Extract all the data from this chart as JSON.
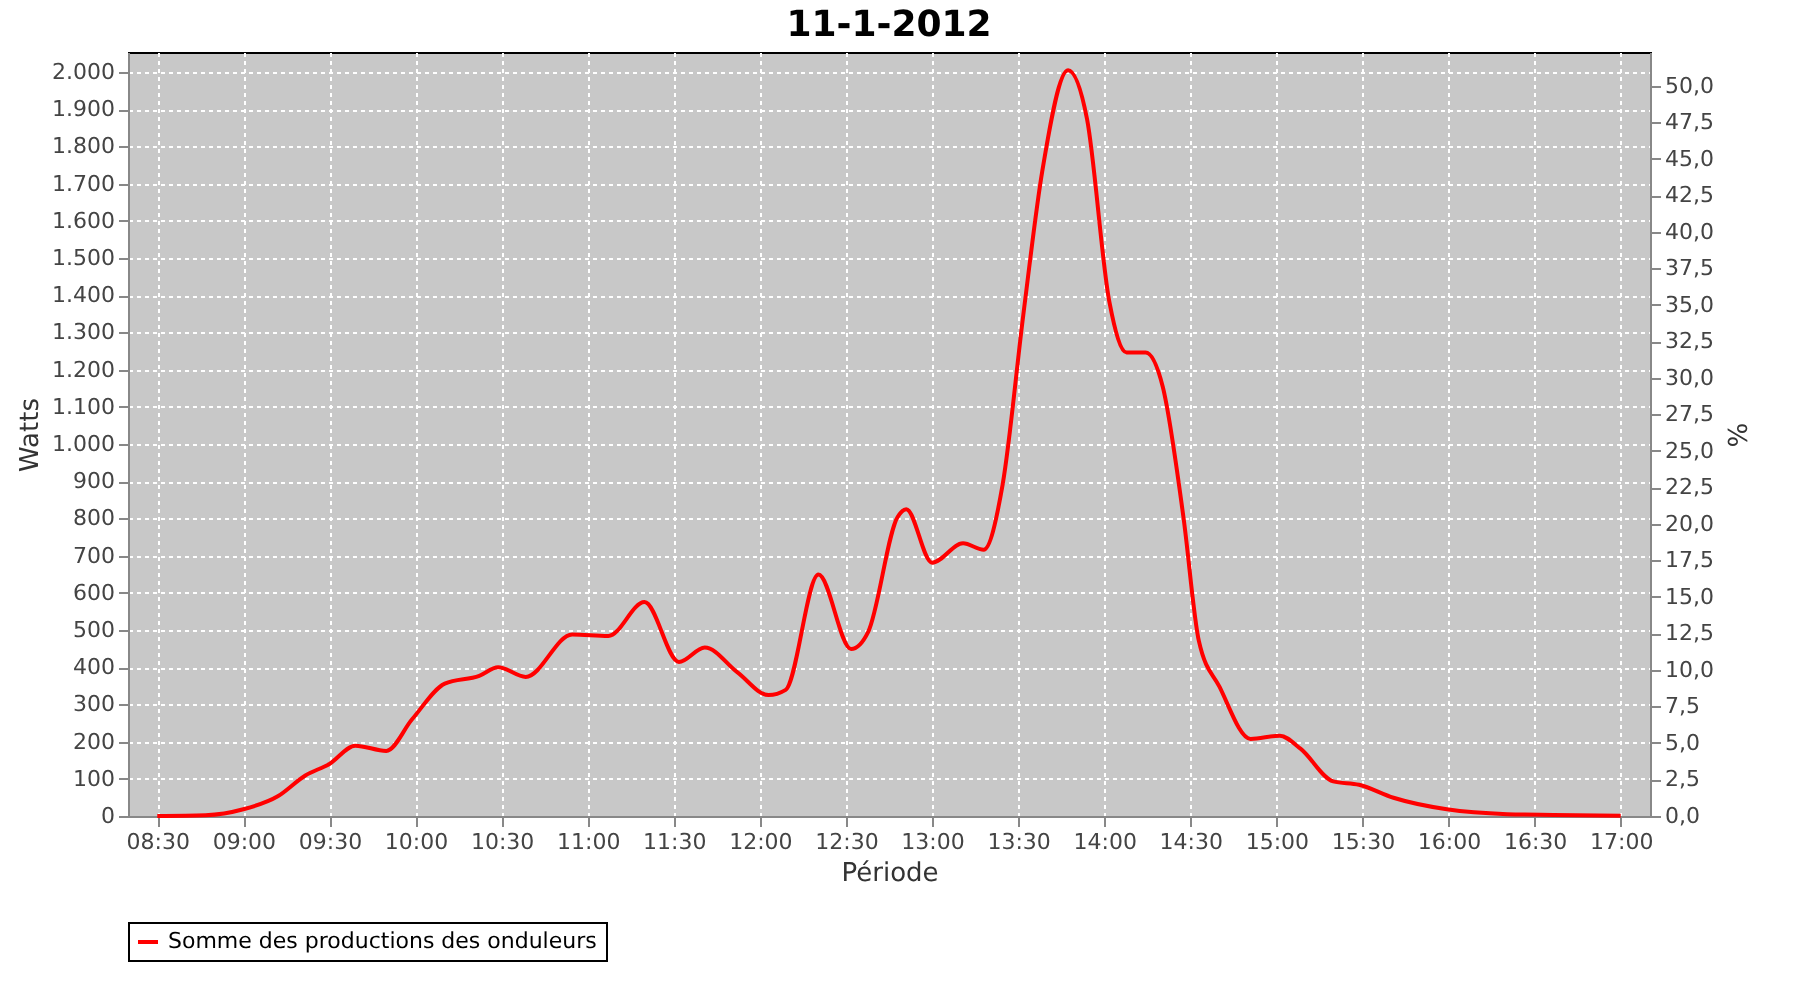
{
  "chart_data": {
    "type": "line",
    "title": "11-1-2012",
    "xlabel": "Période",
    "ylabel": "Watts",
    "y2label": "%",
    "series": [
      {
        "name": "Somme des productions des onduleurs",
        "color": "#ff0000",
        "x": [
          8.5,
          8.78,
          9.0,
          9.2,
          9.36,
          9.5,
          9.65,
          9.83,
          9.98,
          10.17,
          10.37,
          10.48,
          10.64,
          10.91,
          11.12,
          11.33,
          11.53,
          11.68,
          11.87,
          12.05,
          12.15,
          12.34,
          12.53,
          12.63,
          12.8,
          12.85,
          13.0,
          13.18,
          13.3,
          13.41,
          13.53,
          13.64,
          13.79,
          13.9,
          14.03,
          14.13,
          14.24,
          14.34,
          14.46,
          14.55,
          14.67,
          14.85,
          15.02,
          15.14,
          15.33,
          15.48,
          15.68,
          15.99,
          16.34,
          16.61,
          17.0
        ],
        "values": [
          0,
          2,
          18,
          53,
          109,
          140,
          189,
          175,
          260,
          356,
          377,
          400,
          374,
          488,
          484,
          575,
          414,
          453,
          386,
          325,
          339,
          649,
          449,
          496,
          804,
          825,
          681,
          733,
          716,
          891,
          1347,
          1733,
          2005,
          1874,
          1382,
          1246,
          1246,
          1154,
          804,
          470,
          347,
          207,
          216,
          181,
          93,
          84,
          49,
          18,
          5,
          3,
          1
        ]
      }
    ],
    "xlim": [
      8.33,
      17.17
    ],
    "xticks": [
      {
        "value": 8.5,
        "label": "08:30"
      },
      {
        "value": 9,
        "label": "09:00"
      },
      {
        "value": 9.5,
        "label": "09:30"
      },
      {
        "value": 10,
        "label": "10:00"
      },
      {
        "value": 10.5,
        "label": "10:30"
      },
      {
        "value": 11,
        "label": "11:00"
      },
      {
        "value": 11.5,
        "label": "11:30"
      },
      {
        "value": 12,
        "label": "12:00"
      },
      {
        "value": 12.5,
        "label": "12:30"
      },
      {
        "value": 13,
        "label": "13:00"
      },
      {
        "value": 13.5,
        "label": "13:30"
      },
      {
        "value": 14,
        "label": "14:00"
      },
      {
        "value": 14.5,
        "label": "14:30"
      },
      {
        "value": 15,
        "label": "15:00"
      },
      {
        "value": 15.5,
        "label": "15:30"
      },
      {
        "value": 16,
        "label": "16:00"
      },
      {
        "value": 16.5,
        "label": "16:30"
      },
      {
        "value": 17,
        "label": "17:00"
      }
    ],
    "ylim": [
      0,
      2054
    ],
    "yticks": [
      0,
      100,
      200,
      300,
      400,
      500,
      600,
      700,
      800,
      900,
      {
        "value": 1000,
        "label": "1.000"
      },
      {
        "value": 1100,
        "label": "1.100"
      },
      {
        "value": 1200,
        "label": "1.200"
      },
      {
        "value": 1300,
        "label": "1.300"
      },
      {
        "value": 1400,
        "label": "1.400"
      },
      {
        "value": 1500,
        "label": "1.500"
      },
      {
        "value": 1600,
        "label": "1.600"
      },
      {
        "value": 1700,
        "label": "1.700"
      },
      {
        "value": 1800,
        "label": "1.800"
      },
      {
        "value": 1900,
        "label": "1.900"
      },
      {
        "value": 2000,
        "label": "2.000"
      }
    ],
    "y2lim": [
      0,
      52.3
    ],
    "y2ticks": [
      {
        "value": 0,
        "label": "0,0"
      },
      {
        "value": 2.5,
        "label": "2,5"
      },
      {
        "value": 5,
        "label": "5,0"
      },
      {
        "value": 7.5,
        "label": "7,5"
      },
      {
        "value": 10,
        "label": "10,0"
      },
      {
        "value": 12.5,
        "label": "12,5"
      },
      {
        "value": 15,
        "label": "15,0"
      },
      {
        "value": 17.5,
        "label": "17,5"
      },
      {
        "value": 20,
        "label": "20,0"
      },
      {
        "value": 22.5,
        "label": "22,5"
      },
      {
        "value": 25,
        "label": "25,0"
      },
      {
        "value": 27.5,
        "label": "27,5"
      },
      {
        "value": 30,
        "label": "30,0"
      },
      {
        "value": 32.5,
        "label": "32,5"
      },
      {
        "value": 35,
        "label": "35,0"
      },
      {
        "value": 37.5,
        "label": "37,5"
      },
      {
        "value": 40,
        "label": "40,0"
      },
      {
        "value": 42.5,
        "label": "42,5"
      },
      {
        "value": 45,
        "label": "45,0"
      },
      {
        "value": 47.5,
        "label": "47,5"
      },
      {
        "value": 50,
        "label": "50,0"
      }
    ],
    "grid": true,
    "legend": "bottom",
    "marker": "none",
    "line_style": "solid"
  }
}
